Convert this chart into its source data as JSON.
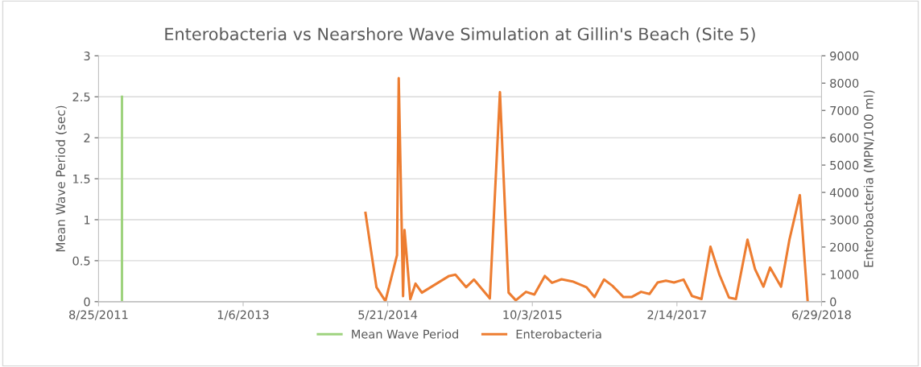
{
  "chart_data": {
    "type": "line",
    "title": "Enterobacteria vs Nearshore Wave Simulation at Gillin's Beach (Site 5)",
    "ylabel": "Mean Wave Period (sec)",
    "y2label": "Enterobacteria (MPN/100 ml)",
    "xlim": [
      "2011-08-25",
      "2018-06-29"
    ],
    "xticks": [
      {
        "value": "2011-08-25",
        "label": "8/25/2011"
      },
      {
        "value": "2013-01-06",
        "label": "1/6/2013"
      },
      {
        "value": "2014-05-21",
        "label": "5/21/2014"
      },
      {
        "value": "2015-10-03",
        "label": "10/3/2015"
      },
      {
        "value": "2017-02-14",
        "label": "2/14/2017"
      },
      {
        "value": "2018-06-29",
        "label": "6/29/2018"
      }
    ],
    "ylim": [
      0,
      3
    ],
    "yticks": [
      0,
      0.5,
      1,
      1.5,
      2,
      2.5,
      3
    ],
    "y2lim": [
      0,
      9000
    ],
    "y2ticks": [
      0,
      1000,
      2000,
      3000,
      4000,
      5000,
      6000,
      7000,
      8000,
      9000
    ],
    "grid": "y",
    "legend": "bottom",
    "marker": "none",
    "line_style": "solid",
    "series": [
      {
        "name": "Mean Wave Period",
        "color": "#9fd37f",
        "x": [
          "2011-11-14",
          "2011-11-14"
        ],
        "values": [
          0,
          2.5
        ]
      },
      {
        "name": "Enterobacteria",
        "color": "#ed7d31",
        "axis": "y2",
        "x": [
          "2014-03-05",
          "2014-04-12",
          "2014-05-13",
          "2014-06-22",
          "2014-06-28",
          "2014-07-13",
          "2014-07-18",
          "2014-08-07",
          "2014-08-25",
          "2014-09-16",
          "2014-12-19",
          "2015-01-10",
          "2015-02-16",
          "2015-03-15",
          "2015-05-09",
          "2015-06-13",
          "2015-07-13",
          "2015-08-07",
          "2015-09-11",
          "2015-10-10",
          "2015-11-15",
          "2015-12-10",
          "2016-01-12",
          "2016-02-19",
          "2016-04-07",
          "2016-05-05",
          "2016-06-07",
          "2016-07-06",
          "2016-08-13",
          "2016-09-10",
          "2016-10-13",
          "2016-11-11",
          "2016-12-09",
          "2017-01-07",
          "2017-02-04",
          "2017-03-09",
          "2017-04-07",
          "2017-05-10",
          "2017-06-10",
          "2017-07-11",
          "2017-08-13",
          "2017-09-06",
          "2017-10-16",
          "2017-11-11",
          "2017-12-10",
          "2018-01-02",
          "2018-02-09",
          "2018-03-10",
          "2018-04-15",
          "2018-05-12"
        ],
        "values": [
          3250,
          530,
          20,
          1700,
          8180,
          200,
          2620,
          90,
          660,
          330,
          940,
          990,
          530,
          810,
          120,
          7670,
          330,
          50,
          360,
          260,
          940,
          690,
          820,
          740,
          530,
          170,
          810,
          580,
          170,
          170,
          360,
          280,
          700,
          770,
          700,
          810,
          210,
          100,
          2010,
          990,
          150,
          100,
          2270,
          1190,
          550,
          1250,
          550,
          2270,
          3900,
          20
        ]
      }
    ]
  }
}
